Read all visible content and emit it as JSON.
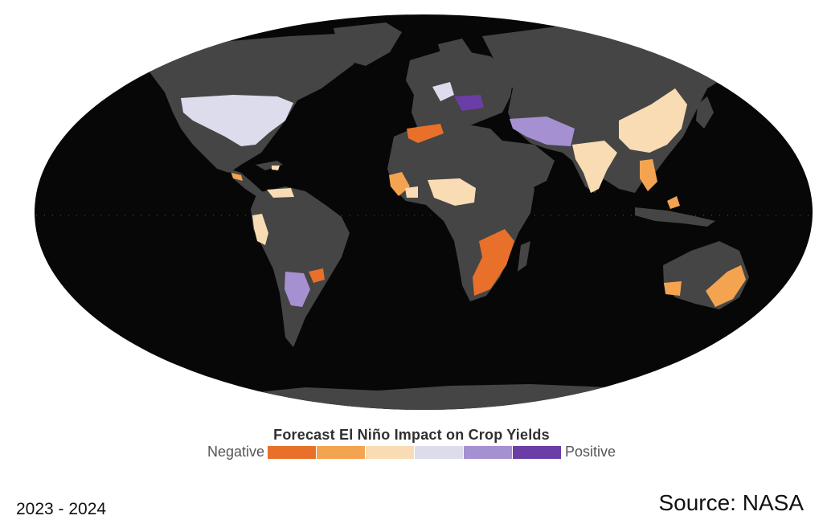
{
  "legend": {
    "title": "Forecast El Niño Impact on Crop Yields",
    "negative_label": "Negative",
    "positive_label": "Positive",
    "scale": [
      {
        "level": "strong negative",
        "color": "#e8702a"
      },
      {
        "level": "moderate negative",
        "color": "#f4a450"
      },
      {
        "level": "slight negative",
        "color": "#f9dcb4"
      },
      {
        "level": "slight positive",
        "color": "#dddcec"
      },
      {
        "level": "moderate positive",
        "color": "#a590d2"
      },
      {
        "level": "strong positive",
        "color": "#6a3ea6"
      }
    ]
  },
  "caption": {
    "years": "2023 - 2024",
    "source": "Source: NASA"
  },
  "map": {
    "ocean_color": "#070707",
    "land_color": "#454545",
    "regions": [
      {
        "name": "United States",
        "impact": "slight positive"
      },
      {
        "name": "Central America",
        "impact": "moderate negative"
      },
      {
        "name": "Northern South America",
        "impact": "slight negative"
      },
      {
        "name": "Southern South America",
        "impact": "moderate positive"
      },
      {
        "name": "Southern Brazil",
        "impact": "strong negative"
      },
      {
        "name": "North Africa",
        "impact": "strong negative"
      },
      {
        "name": "West Africa",
        "impact": "moderate negative"
      },
      {
        "name": "Sahel",
        "impact": "slight negative"
      },
      {
        "name": "Southern Africa",
        "impact": "strong negative"
      },
      {
        "name": "Europe",
        "impact": "slight positive"
      },
      {
        "name": "Balkans",
        "impact": "strong positive"
      },
      {
        "name": "Central Asia",
        "impact": "moderate positive"
      },
      {
        "name": "India",
        "impact": "slight negative"
      },
      {
        "name": "China",
        "impact": "slight negative"
      },
      {
        "name": "Southeast Asia",
        "impact": "moderate negative"
      },
      {
        "name": "Australia",
        "impact": "moderate negative"
      }
    ]
  }
}
